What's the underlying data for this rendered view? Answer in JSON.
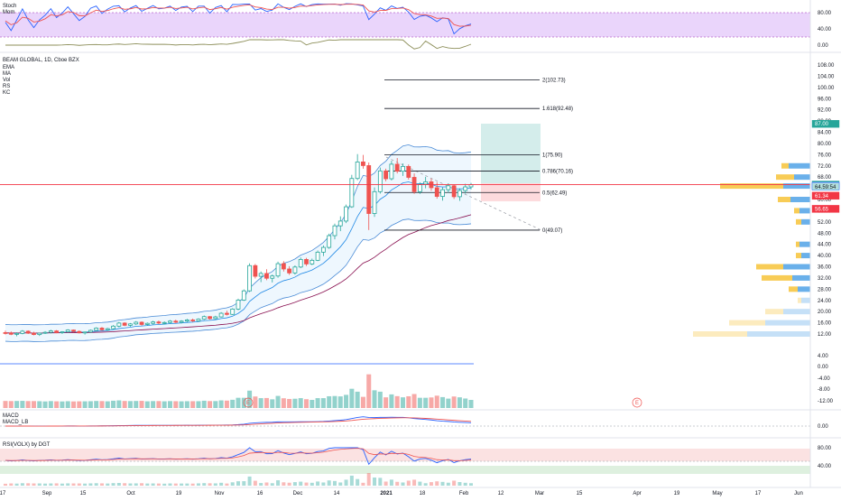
{
  "symbol_header": "BEAM GLOBAL, 1D, Cboe BZX",
  "indicator_legend": [
    "EMA",
    "MA",
    "Vol",
    "RS",
    "KC"
  ],
  "stoch_pane": {
    "labels": [
      "Stoch",
      "Mom"
    ],
    "axis_ticks": [
      "80.00",
      "40.00",
      "0.00"
    ]
  },
  "macd_pane": {
    "labels": [
      "MACD",
      "MACD_LB"
    ],
    "axis_ticks": [
      "0.00"
    ]
  },
  "rsi_pane": {
    "labels": [
      "RSI(VOLX) by DGT"
    ],
    "axis_ticks": [
      "80.00",
      "40.00"
    ]
  },
  "volume_pane": {
    "axis_ticks": [
      "4.00",
      "0.00",
      "-4.00",
      "-8.00",
      "-12.00"
    ],
    "markers": [
      "E",
      "E"
    ]
  },
  "price_axis_ticks": [
    "108.00",
    "104.00",
    "100.00",
    "96.00",
    "92.00",
    "88.00",
    "84.00",
    "80.00",
    "76.00",
    "72.00",
    "68.00",
    "64.00",
    "60.00",
    "56.00",
    "52.00",
    "48.00",
    "44.00",
    "40.00",
    "36.00",
    "32.00",
    "28.00",
    "24.00",
    "20.00",
    "16.00",
    "12.00"
  ],
  "price_badges": [
    {
      "text": "87.00",
      "color": "#26a69a"
    },
    {
      "text": "65.30",
      "color": "#26a69a"
    },
    {
      "text": "64.86",
      "color": "#ffffff"
    },
    {
      "text": "64.59:54",
      "color": "#b2dfdb"
    },
    {
      "text": "61.34",
      "color": "#f23645"
    },
    {
      "text": "56.65",
      "color": "#f23645"
    }
  ],
  "x_axis_ticks": [
    "17",
    "Sep",
    "15",
    "Oct",
    "19",
    "Nov",
    "16",
    "Dec",
    "14",
    "2021",
    "18",
    "Feb",
    "12",
    "Mar",
    "15",
    "Apr",
    "19",
    "May",
    "17",
    "Jun"
  ],
  "colors": {
    "up": "#26a69a",
    "down": "#ef5350",
    "stoch_bg": "#d9b3f7",
    "keltner": "#4a8bd6",
    "current_price_line": "#f23645",
    "volume_profile_up": "#5aa7e8",
    "volume_profile_down": "#f7c744"
  },
  "chart_data": [
    {
      "type": "candlestick",
      "title": "BEAM GLOBAL, 1D, Cboe BZX",
      "ylim": [
        10,
        110
      ],
      "current_price": 65.3,
      "fibonacci_levels": [
        {
          "label": "2(102.73)",
          "value": 102.73
        },
        {
          "label": "1.618(92.48)",
          "value": 92.48
        },
        {
          "label": "1(75.90)",
          "value": 75.9
        },
        {
          "label": "0.786(70.16)",
          "value": 70.16
        },
        {
          "label": "0.5(62.49)",
          "value": 62.49
        },
        {
          "label": "0(49.07)",
          "value": 49.07
        }
      ],
      "candles": [
        [
          12.5,
          13.2,
          11.8,
          12.4
        ],
        [
          12.4,
          12.9,
          11.6,
          11.9
        ],
        [
          11.9,
          12.6,
          11.2,
          12.2
        ],
        [
          12.2,
          13.4,
          11.9,
          13.0
        ],
        [
          13.0,
          13.3,
          12.0,
          12.3
        ],
        [
          12.3,
          12.8,
          11.5,
          11.8
        ],
        [
          11.8,
          12.5,
          11.3,
          12.3
        ],
        [
          12.3,
          13.0,
          12.0,
          12.6
        ],
        [
          12.6,
          13.5,
          12.2,
          13.1
        ],
        [
          13.1,
          13.4,
          12.3,
          12.5
        ],
        [
          12.5,
          13.0,
          12.0,
          12.8
        ],
        [
          12.8,
          13.7,
          12.5,
          13.4
        ],
        [
          13.4,
          13.6,
          12.6,
          12.9
        ],
        [
          12.9,
          13.3,
          12.2,
          12.4
        ],
        [
          12.4,
          12.9,
          11.8,
          12.7
        ],
        [
          12.7,
          13.6,
          12.4,
          13.3
        ],
        [
          13.3,
          14.4,
          13.0,
          14.1
        ],
        [
          14.1,
          14.5,
          13.2,
          13.5
        ],
        [
          13.5,
          14.2,
          13.1,
          13.9
        ],
        [
          13.9,
          15.2,
          13.6,
          14.8
        ],
        [
          14.8,
          16.3,
          14.4,
          15.9
        ],
        [
          15.9,
          16.2,
          14.8,
          15.1
        ],
        [
          15.1,
          15.9,
          14.6,
          15.6
        ],
        [
          15.6,
          16.6,
          15.2,
          16.2
        ],
        [
          16.2,
          16.5,
          15.0,
          15.4
        ],
        [
          15.4,
          16.1,
          15.0,
          15.8
        ],
        [
          15.8,
          16.7,
          15.4,
          16.3
        ],
        [
          16.3,
          16.8,
          15.5,
          15.9
        ],
        [
          15.9,
          16.5,
          15.4,
          16.1
        ],
        [
          16.1,
          17.0,
          15.7,
          16.6
        ],
        [
          16.6,
          17.1,
          15.9,
          16.2
        ],
        [
          16.2,
          16.9,
          15.8,
          16.6
        ],
        [
          16.6,
          17.4,
          16.2,
          17.0
        ],
        [
          17.0,
          17.5,
          16.3,
          16.7
        ],
        [
          16.7,
          17.6,
          16.4,
          17.3
        ],
        [
          17.3,
          18.6,
          17.0,
          18.2
        ],
        [
          18.2,
          18.4,
          17.1,
          17.5
        ],
        [
          17.5,
          18.5,
          17.2,
          18.1
        ],
        [
          18.1,
          19.8,
          17.9,
          19.4
        ],
        [
          19.4,
          20.3,
          18.6,
          19.0
        ],
        [
          19.0,
          21.2,
          18.8,
          20.9
        ],
        [
          20.9,
          24.6,
          20.5,
          24.1
        ],
        [
          24.1,
          27.9,
          23.8,
          27.4
        ],
        [
          27.4,
          37.2,
          27.0,
          36.4
        ],
        [
          36.4,
          37.0,
          31.8,
          32.6
        ],
        [
          32.6,
          34.3,
          30.5,
          33.6
        ],
        [
          33.6,
          35.1,
          31.2,
          31.9
        ],
        [
          31.9,
          33.2,
          30.4,
          32.7
        ],
        [
          32.7,
          37.8,
          32.1,
          37.1
        ],
        [
          37.1,
          38.0,
          34.3,
          35.2
        ],
        [
          35.2,
          36.2,
          33.1,
          33.8
        ],
        [
          33.8,
          36.5,
          33.2,
          35.9
        ],
        [
          35.9,
          39.3,
          35.5,
          38.6
        ],
        [
          38.6,
          39.2,
          36.3,
          37.0
        ],
        [
          37.0,
          38.9,
          36.6,
          38.3
        ],
        [
          38.3,
          41.8,
          38.0,
          41.2
        ],
        [
          41.2,
          43.6,
          39.8,
          42.9
        ],
        [
          42.9,
          47.8,
          42.4,
          47.1
        ],
        [
          47.1,
          51.4,
          45.8,
          50.6
        ],
        [
          50.6,
          54.0,
          48.7,
          52.3
        ],
        [
          52.3,
          58.2,
          51.6,
          57.4
        ],
        [
          57.4,
          68.8,
          57.0,
          67.5
        ],
        [
          67.5,
          76.2,
          66.9,
          73.4
        ],
        [
          73.4,
          75.9,
          71.0,
          72.1
        ],
        [
          72.1,
          73.2,
          49.1,
          55.0
        ],
        [
          55.0,
          64.3,
          53.8,
          62.8
        ],
        [
          62.8,
          71.4,
          62.1,
          70.2
        ],
        [
          70.2,
          71.0,
          66.5,
          67.4
        ],
        [
          67.4,
          73.8,
          66.8,
          72.6
        ],
        [
          72.6,
          74.8,
          69.3,
          70.1
        ],
        [
          70.1,
          72.9,
          68.4,
          71.8
        ],
        [
          71.8,
          72.5,
          67.1,
          67.9
        ],
        [
          67.9,
          69.3,
          62.0,
          62.8
        ],
        [
          62.8,
          66.1,
          62.0,
          65.5
        ],
        [
          65.5,
          68.1,
          64.0,
          66.3
        ],
        [
          66.3,
          67.5,
          63.1,
          64.2
        ],
        [
          64.2,
          66.2,
          60.3,
          61.1
        ],
        [
          61.1,
          64.3,
          59.6,
          63.5
        ],
        [
          63.5,
          65.8,
          62.4,
          64.9
        ],
        [
          64.9,
          65.4,
          60.2,
          61.0
        ],
        [
          61.0,
          64.0,
          59.5,
          63.2
        ],
        [
          63.2,
          65.6,
          62.1,
          64.5
        ],
        [
          64.5,
          65.9,
          63.6,
          65.3
        ]
      ],
      "volume_profile": [
        {
          "price": 72,
          "up": 24,
          "down": 8
        },
        {
          "price": 68,
          "up": 18,
          "down": 20
        },
        {
          "price": 64.8,
          "up": 30,
          "down": 70
        },
        {
          "price": 60,
          "up": 22,
          "down": 14
        },
        {
          "price": 56,
          "up": 12,
          "down": 6
        },
        {
          "price": 52,
          "up": 10,
          "down": 6
        },
        {
          "price": 44,
          "up": 12,
          "down": 4
        },
        {
          "price": 40,
          "up": 10,
          "down": 6
        },
        {
          "price": 36,
          "up": 30,
          "down": 30
        },
        {
          "price": 32,
          "up": 20,
          "down": 34
        },
        {
          "price": 28,
          "up": 14,
          "down": 10
        },
        {
          "price": 24,
          "up": 10,
          "down": 4
        },
        {
          "price": 20,
          "up": 30,
          "down": 20
        },
        {
          "price": 16,
          "up": 50,
          "down": 40
        },
        {
          "price": 12,
          "up": 70,
          "down": 60
        }
      ]
    }
  ]
}
